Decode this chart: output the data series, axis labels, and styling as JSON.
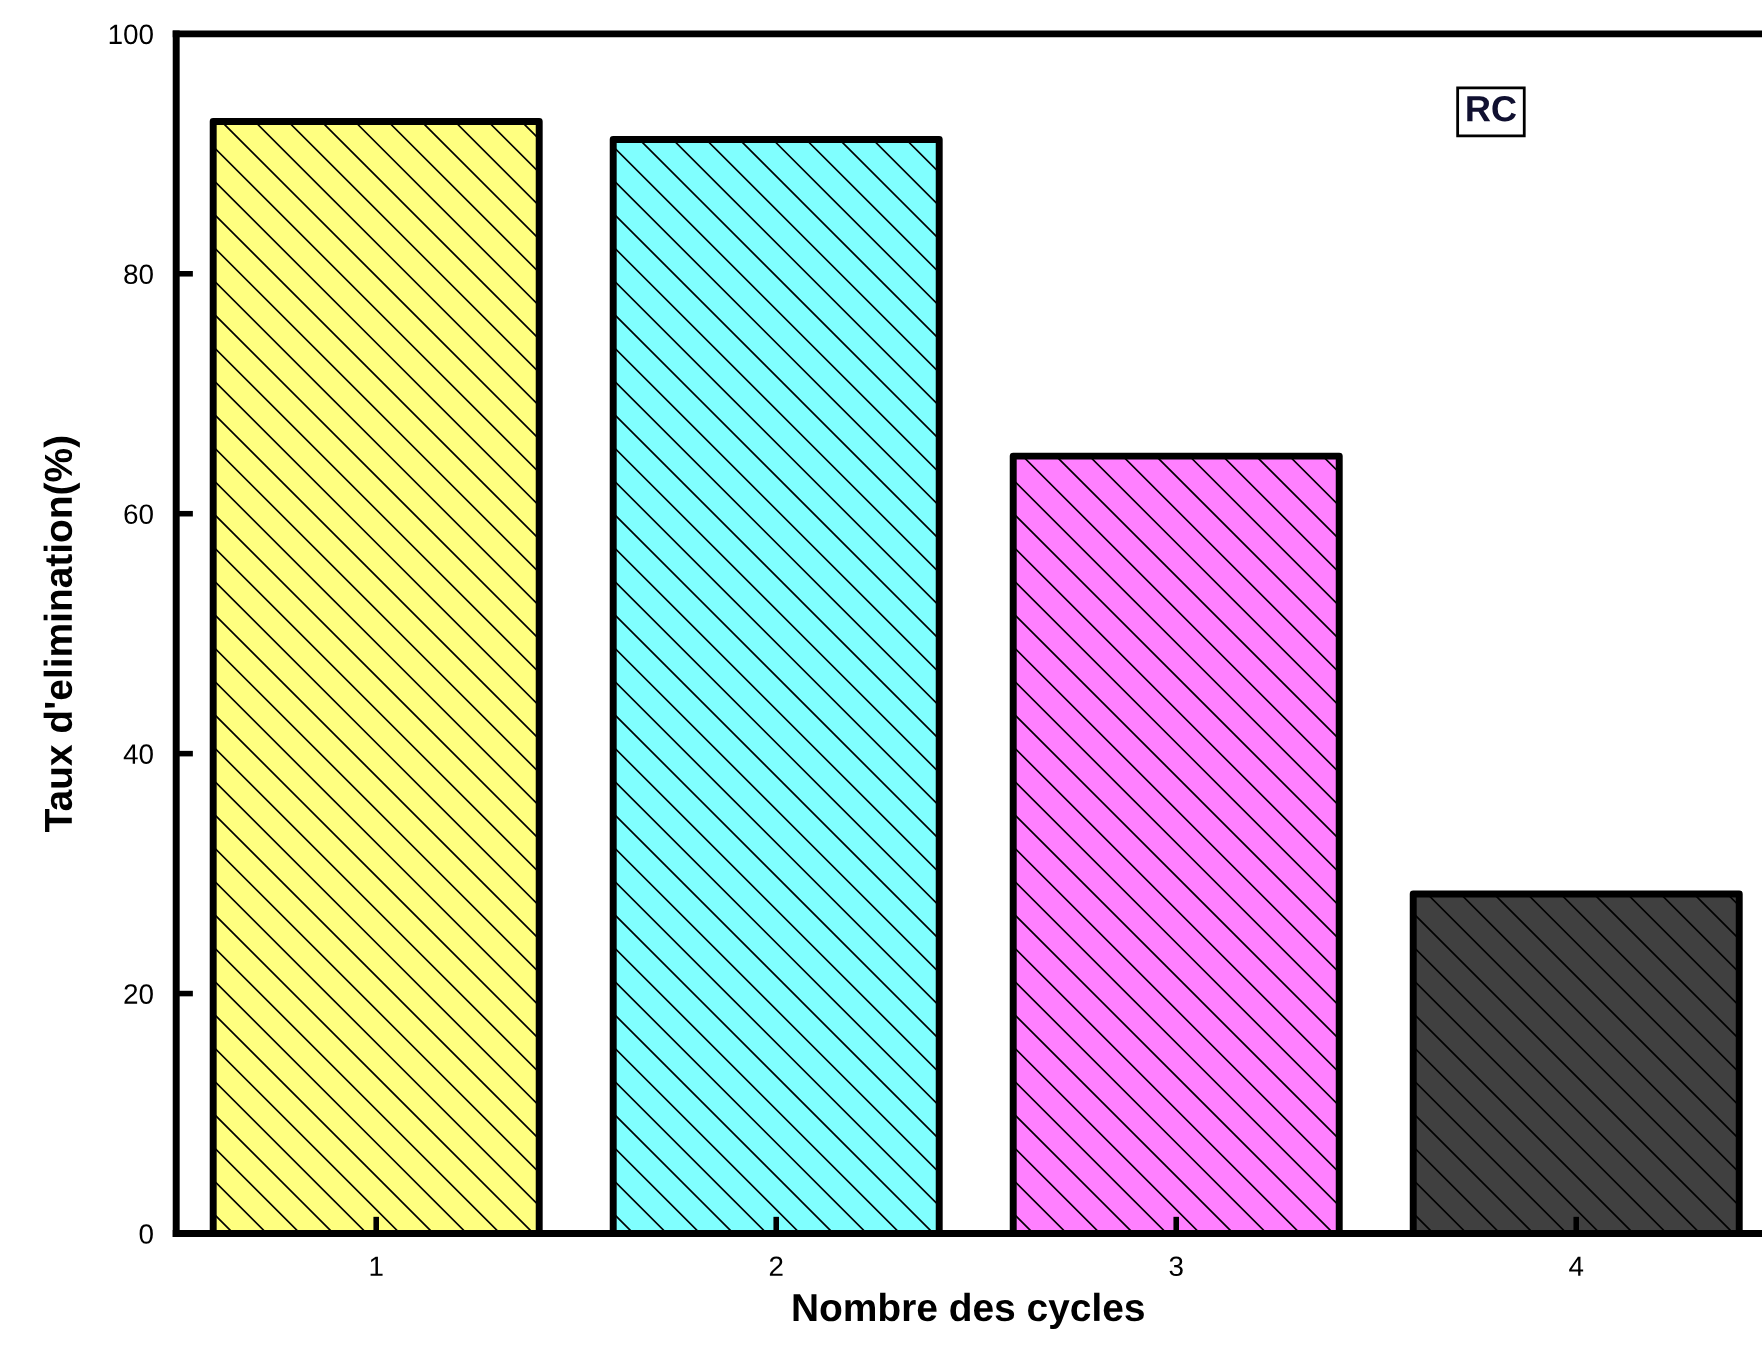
{
  "chart_data": {
    "type": "bar",
    "xlabel": "Nombre des cycles",
    "ylabel": "Taux d'elimination(%)",
    "categories": [
      "1",
      "2",
      "3",
      "4"
    ],
    "values": [
      92.7,
      91.2,
      64.8,
      28.3
    ],
    "colors": [
      "#ffff80",
      "#80ffff",
      "#ff80ff",
      "#404040"
    ],
    "ylim": [
      0,
      100
    ],
    "yticks": [
      0,
      20,
      40,
      60,
      80,
      100
    ],
    "grid": false,
    "legend": false,
    "annotations": [
      "RC"
    ]
  }
}
